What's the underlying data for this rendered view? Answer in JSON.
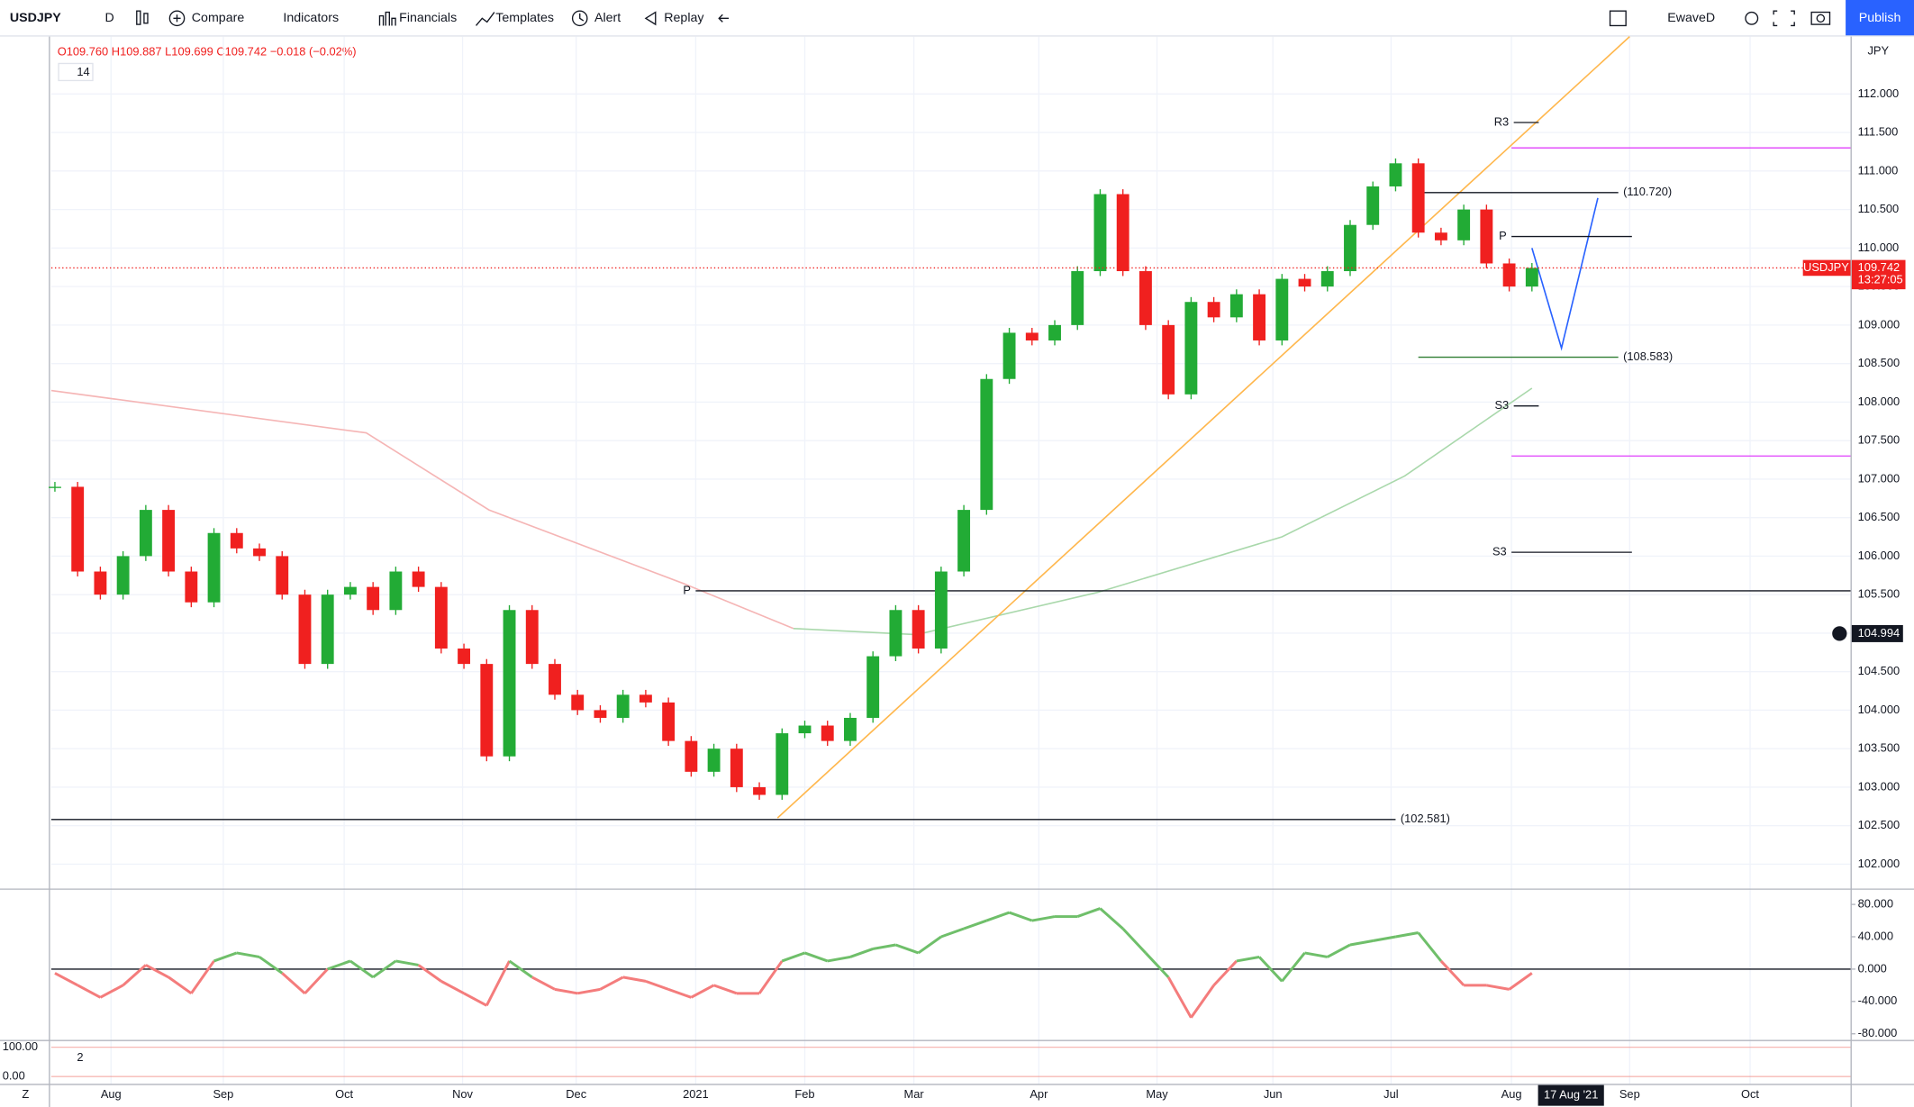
{
  "toolbar": {
    "symbol": "USDJPY",
    "interval": "D",
    "buttons": [
      "Compare",
      "Indicators",
      "Financials",
      "Templates",
      "Alert",
      "Replay"
    ],
    "layout": "EwaveD",
    "publish": "Publish"
  },
  "legend": {
    "open": "O109.760",
    "high": "H109.887",
    "low": "L109.699",
    "close": "C109.742",
    "change": "−0.018 (−0.02%)",
    "indicator_1": "14",
    "indicator_2": "2"
  },
  "chart_data": {
    "type": "candlestick",
    "symbol_tag": "USDJPY",
    "currency": "JPY",
    "scale_mark": "Z",
    "countdown": "13:27:05",
    "price_tag": {
      "value": 109.742,
      "label": "109.742"
    },
    "crosshair_price": {
      "value": 104.994,
      "label": "104.994"
    },
    "crosshair_date": "17 Aug '21",
    "up_color": "#22ab35",
    "down_color": "#f0201f",
    "closes": [
      106.9,
      105.8,
      105.5,
      106.0,
      106.6,
      105.8,
      105.4,
      106.3,
      106.1,
      106.0,
      105.5,
      104.6,
      105.5,
      105.6,
      105.3,
      105.8,
      105.6,
      104.8,
      104.6,
      103.4,
      105.3,
      104.6,
      104.2,
      104.0,
      103.9,
      104.2,
      104.1,
      103.6,
      103.2,
      103.5,
      103.0,
      102.9,
      103.7,
      103.8,
      103.6,
      103.9,
      104.7,
      105.3,
      104.8,
      105.8,
      106.6,
      108.3,
      108.9,
      108.8,
      109.0,
      109.7,
      110.7,
      109.7,
      109.0,
      108.1,
      109.3,
      109.1,
      109.4,
      108.8,
      109.6,
      109.5,
      109.7,
      110.3,
      110.8,
      111.1,
      110.2,
      110.1,
      110.5,
      109.8,
      109.5,
      109.742
    ],
    "xlim": [
      -0.16,
      79.02
    ],
    "xticks": [
      {
        "value": 2.47,
        "label": "Aug"
      },
      {
        "value": 7.41,
        "label": "Sep"
      },
      {
        "value": 12.73,
        "label": "Oct"
      },
      {
        "value": 17.94,
        "label": "Nov"
      },
      {
        "value": 22.94,
        "label": "Dec"
      },
      {
        "value": 28.2,
        "label": "2021"
      },
      {
        "value": 33.0,
        "label": "Feb"
      },
      {
        "value": 37.8,
        "label": "Mar"
      },
      {
        "value": 43.3,
        "label": "Apr"
      },
      {
        "value": 48.5,
        "label": "May"
      },
      {
        "value": 53.6,
        "label": "Jun"
      },
      {
        "value": 58.8,
        "label": "Jul"
      },
      {
        "value": 64.1,
        "label": "Aug"
      },
      {
        "value": 69.3,
        "label": "Sep"
      },
      {
        "value": 74.6,
        "label": "Oct"
      }
    ],
    "ylim": [
      101.7,
      112.745
    ],
    "yticks": [
      {
        "value": 102,
        "label": "102.000"
      },
      {
        "value": 102.5,
        "label": "102.500"
      },
      {
        "value": 103,
        "label": "103.000"
      },
      {
        "value": 103.5,
        "label": "103.500"
      },
      {
        "value": 104,
        "label": "104.000"
      },
      {
        "value": 104.5,
        "label": "104.500"
      },
      {
        "value": 105,
        "label": "105.000"
      },
      {
        "value": 105.5,
        "label": "105.500"
      },
      {
        "value": 106,
        "label": "106.000"
      },
      {
        "value": 106.5,
        "label": "106.500"
      },
      {
        "value": 107,
        "label": "107.000"
      },
      {
        "value": 107.5,
        "label": "107.500"
      },
      {
        "value": 108,
        "label": "108.000"
      },
      {
        "value": 108.5,
        "label": "108.500"
      },
      {
        "value": 109,
        "label": "109.000"
      },
      {
        "value": 109.5,
        "label": "109.500"
      },
      {
        "value": 110,
        "label": "110.000"
      },
      {
        "value": 110.5,
        "label": "110.500"
      },
      {
        "value": 111,
        "label": "111.000"
      },
      {
        "value": 111.5,
        "label": "111.500"
      },
      {
        "value": 112,
        "label": "112.000"
      }
    ],
    "lines": [
      {
        "color": "#f5b5b5",
        "x": [
          -0.16,
          13.7,
          19.1,
          27.7,
          32.5
        ],
        "values": [
          108.15,
          107.6,
          106.6,
          105.64,
          105.06
        ]
      },
      {
        "color": "#a9d8ab",
        "x": [
          32.5,
          37.9,
          45.9,
          54,
          59.4,
          65
        ],
        "values": [
          105.06,
          104.98,
          105.53,
          106.25,
          107.04,
          108.18
        ]
      },
      {
        "color": "#ffb74d",
        "x": [
          31.8,
          69.3
        ],
        "values": [
          102.6,
          112.745
        ]
      },
      {
        "color": "#2962ff",
        "x": [
          65,
          66.3,
          67.9
        ],
        "values": [
          110.0,
          108.7,
          110.65
        ]
      }
    ],
    "levels": [
      {
        "value": 102.581,
        "label": "(102.581)",
        "x": [
          -0.16,
          59
        ],
        "color": "#131722",
        "label_at": "end"
      },
      {
        "value": 105.55,
        "label": "P",
        "x": [
          28.2,
          79.02
        ],
        "color": "#131722",
        "label_at": "start"
      },
      {
        "value": 108.583,
        "label": "(108.583)",
        "x": [
          60,
          68.8
        ],
        "color": "#2e7d32",
        "label_at": "end"
      },
      {
        "value": 110.72,
        "label": "(110.720)",
        "x": [
          60,
          68.8
        ],
        "color": "#131722",
        "label_at": "end"
      },
      {
        "value": 111.63,
        "label": "R3",
        "x": [
          64.2,
          65.3
        ],
        "color": "#131722",
        "label_at": "start"
      },
      {
        "value": 111.3,
        "x": [
          64.1,
          79.02
        ],
        "color": "#e040fb"
      },
      {
        "value": 110.15,
        "label": "P",
        "x": [
          64.1,
          69.4
        ],
        "color": "#131722",
        "label_at": "start"
      },
      {
        "value": 107.95,
        "label": "S3",
        "x": [
          64.2,
          65.3
        ],
        "color": "#131722",
        "label_at": "start"
      },
      {
        "value": 107.3,
        "x": [
          64.1,
          79.02
        ],
        "color": "#e040fb"
      },
      {
        "value": 106.05,
        "label": "S3",
        "x": [
          64.1,
          69.4
        ],
        "color": "#131722",
        "label_at": "start"
      }
    ],
    "oscillator": {
      "ylim": [
        -84.5,
        92.1
      ],
      "yticks": [
        {
          "value": 80,
          "label": "80.000"
        },
        {
          "value": 40,
          "label": "40.000"
        },
        {
          "value": 0,
          "label": "0.000"
        },
        {
          "value": -40,
          "label": "-40.000"
        },
        {
          "value": -80,
          "label": "-80.000"
        }
      ],
      "up_color": "#6fbf6a",
      "down_color": "#f47c7c",
      "values": [
        -5,
        -20,
        -35,
        -20,
        5,
        -10,
        -30,
        10,
        20,
        15,
        -5,
        -30,
        0,
        10,
        -10,
        10,
        5,
        -15,
        -30,
        -45,
        10,
        -10,
        -25,
        -30,
        -25,
        -10,
        -15,
        -25,
        -35,
        -20,
        -30,
        -30,
        10,
        20,
        10,
        15,
        25,
        30,
        20,
        40,
        50,
        60,
        70,
        60,
        65,
        65,
        75,
        50,
        20,
        -10,
        -60,
        -20,
        10,
        15,
        -15,
        20,
        15,
        30,
        35,
        40,
        45,
        10,
        -20,
        -20,
        -25,
        -5
      ]
    },
    "lower": {
      "ylim": [
        -33.3,
        116.7
      ],
      "yticks": [
        {
          "value": 100,
          "label": "100.00"
        },
        {
          "value": 0,
          "label": "0.00"
        }
      ]
    }
  }
}
